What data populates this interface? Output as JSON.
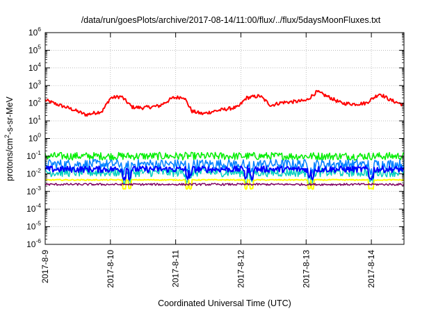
{
  "chart_data": {
    "type": "line",
    "title": "/data/run/goesPlots/archive/2017-08-14/11:00/flux/../flux/5daysMoonFluxes.txt",
    "xlabel": "Coordinated Universal Time (UTC)",
    "ylabel_parts": [
      "protons/cm",
      "2",
      "-s-sr-MeV"
    ],
    "y_scale": "log",
    "ylim": [
      1e-06,
      1000000.0
    ],
    "xlim": [
      "2017-08-09 00:00",
      "2017-08-14 12:00"
    ],
    "grid": true,
    "x_ticks": [
      "2017-8-9",
      "2017-8-10",
      "2017-8-11",
      "2017-8-12",
      "2017-8-13",
      "2017-8-14"
    ],
    "y_ticks": [
      {
        "base": "10",
        "exp": "-6"
      },
      {
        "base": "10",
        "exp": "-5"
      },
      {
        "base": "10",
        "exp": "-4"
      },
      {
        "base": "10",
        "exp": "-3"
      },
      {
        "base": "10",
        "exp": "-2"
      },
      {
        "base": "10",
        "exp": "-1"
      },
      {
        "base": "10",
        "exp": "0"
      },
      {
        "base": "10",
        "exp": "1"
      },
      {
        "base": "10",
        "exp": "2"
      },
      {
        "base": "10",
        "exp": "3"
      },
      {
        "base": "10",
        "exp": "4"
      },
      {
        "base": "10",
        "exp": "5"
      },
      {
        "base": "10",
        "exp": "6"
      }
    ],
    "series": [
      {
        "color": "#ff0000",
        "width": 2.0,
        "noise": 0.1,
        "dips": false,
        "x": [
          "2017-08-09 00:00",
          "2017-08-09 04:00",
          "2017-08-09 10:00",
          "2017-08-09 15:00",
          "2017-08-09 21:00",
          "2017-08-10 00:00",
          "2017-08-10 04:00",
          "2017-08-10 08:00",
          "2017-08-10 12:00",
          "2017-08-10 18:00",
          "2017-08-10 23:00",
          "2017-08-11 03:00",
          "2017-08-11 06:00",
          "2017-08-11 10:00",
          "2017-08-11 14:00",
          "2017-08-11 18:00",
          "2017-08-11 23:00",
          "2017-08-12 02:00",
          "2017-08-12 07:00",
          "2017-08-12 11:00",
          "2017-08-12 15:00",
          "2017-08-12 19:00",
          "2017-08-13 00:00",
          "2017-08-13 04:00",
          "2017-08-13 09:00",
          "2017-08-13 13:00",
          "2017-08-13 18:00",
          "2017-08-13 22:00",
          "2017-08-14 03:00",
          "2017-08-14 07:00",
          "2017-08-14 12:00"
        ],
        "y": [
          150,
          90,
          45,
          22,
          35,
          200,
          240,
          60,
          55,
          70,
          200,
          230,
          35,
          25,
          35,
          45,
          60,
          200,
          260,
          75,
          110,
          120,
          140,
          450,
          200,
          100,
          90,
          100,
          350,
          150,
          80
        ]
      },
      {
        "color": "#00ee00",
        "width": 1.5,
        "noise": 0.22,
        "dips": false,
        "x": [
          "2017-08-09 00:00",
          "2017-08-14 12:00"
        ],
        "y": [
          0.1,
          0.1
        ]
      },
      {
        "color": "#0080ff",
        "width": 1.5,
        "noise": 0.28,
        "dips": true,
        "x": [
          "2017-08-09 00:00",
          "2017-08-14 12:00"
        ],
        "y": [
          0.035,
          0.035
        ]
      },
      {
        "color": "#00d0c0",
        "width": 1.5,
        "noise": 0.25,
        "dips": true,
        "x": [
          "2017-08-09 00:00",
          "2017-08-14 12:00"
        ],
        "y": [
          0.012,
          0.012
        ]
      },
      {
        "color": "#0000ff",
        "width": 2.0,
        "noise": 0.18,
        "dips": true,
        "x": [
          "2017-08-09 00:00",
          "2017-08-14 12:00"
        ],
        "y": [
          0.018,
          0.018
        ]
      },
      {
        "color": "#ffff00",
        "width": 2.0,
        "noise": 0.03,
        "dips": true,
        "x": [
          "2017-08-09 00:00",
          "2017-08-14 12:00"
        ],
        "y": [
          0.0045,
          0.0045
        ]
      },
      {
        "color": "#800060",
        "width": 1.5,
        "noise": 0.06,
        "dips": false,
        "x": [
          "2017-08-09 00:00",
          "2017-08-14 12:00"
        ],
        "y": [
          0.0025,
          0.0025
        ]
      }
    ]
  }
}
